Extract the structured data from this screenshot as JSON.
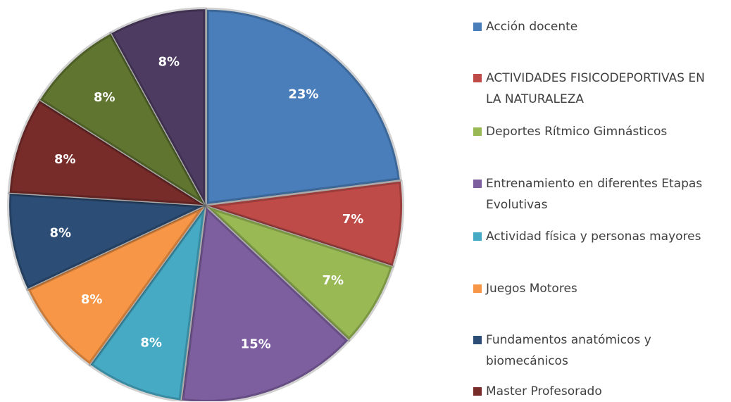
{
  "chart_data": {
    "type": "pie",
    "categories": [
      "Acción docente",
      "ACTIVIDADES FISICODEPORTIVAS EN LA NATURALEZA",
      "Deportes Rítmico Gimnásticos",
      "Entrenamiento en diferentes Etapas Evolutivas",
      "Actividad física y personas mayores",
      "Juegos Motores",
      "Fundamentos anatómicos y biomecánicos",
      "Master Profesorado",
      null,
      null
    ],
    "values": [
      23,
      7,
      7,
      15,
      8,
      8,
      8,
      8,
      8,
      8
    ],
    "value_labels": [
      "23%",
      "7%",
      "7%",
      "15%",
      "8%",
      "8%",
      "8%",
      "8%",
      "8%",
      "8%"
    ],
    "colors": [
      "#4a7ebb",
      "#be4b48",
      "#98b954",
      "#7d5fa0",
      "#46aac5",
      "#f79646",
      "#2c4d75",
      "#772c2a",
      "#5f7530",
      "#4d3b62"
    ],
    "legend": "right"
  }
}
